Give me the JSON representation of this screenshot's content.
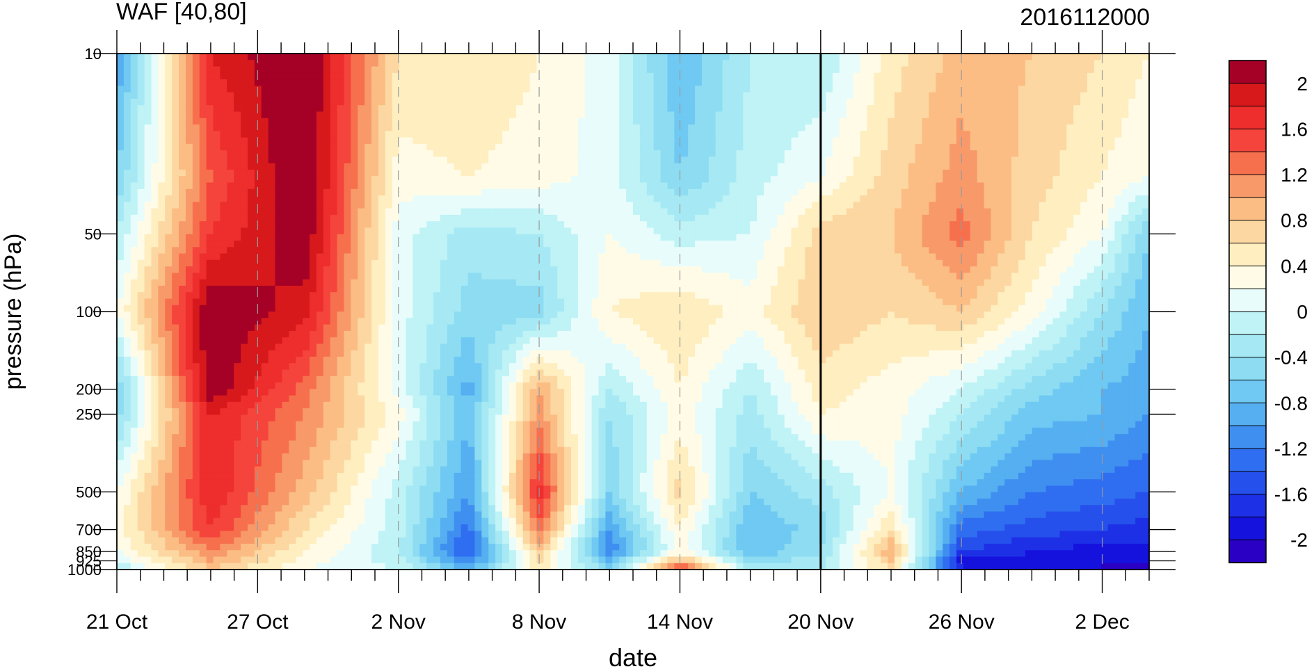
{
  "chart_data": {
    "type": "heatmap",
    "title_left": "WAF [40,80]",
    "title_right": "2016112000",
    "xlabel": "date",
    "ylabel": "pressure (hPa)",
    "x_ticks": [
      "21 Oct",
      "27 Oct",
      "2 Nov",
      "8 Nov",
      "14 Nov",
      "20 Nov",
      "26 Nov",
      "2 Dec"
    ],
    "x_range": [
      "21 Oct",
      "4 Dec"
    ],
    "y_ticks": [
      "10",
      "50",
      "100",
      "200",
      "250",
      "500",
      "700",
      "850",
      "925",
      "1000"
    ],
    "y_range": [
      1000,
      10
    ],
    "y_scale": "log",
    "marker_date": "20 Nov",
    "colorbar": {
      "labels": [
        "2",
        "1.6",
        "1.2",
        "0.8",
        "0.4",
        "0",
        "-0.4",
        "-0.8",
        "-1.2",
        "-1.6",
        "-2"
      ],
      "levels": [
        2.2,
        2.0,
        1.8,
        1.6,
        1.4,
        1.2,
        1.0,
        0.8,
        0.6,
        0.4,
        0.2,
        0.0,
        -0.2,
        -0.4,
        -0.6,
        -0.8,
        -1.0,
        -1.2,
        -1.4,
        -1.6,
        -1.8,
        -2.0,
        -2.2
      ],
      "colors": [
        "#a50026",
        "#d7191c",
        "#ee2d2d",
        "#f4443c",
        "#f7704d",
        "#f8996a",
        "#fbbd84",
        "#fcd7a1",
        "#feeec0",
        "#fffbe6",
        "#e8fcfc",
        "#bff3f6",
        "#a6e9f4",
        "#8ddcf2",
        "#6fc9f2",
        "#55aff0",
        "#3f8ff0",
        "#2f6ef0",
        "#2650ec",
        "#1d30e6",
        "#1612de",
        "#2a00c4"
      ]
    },
    "x_dates": [
      "21 Oct",
      "25 Oct",
      "29 Oct",
      "2 Nov",
      "5 Nov",
      "8 Nov",
      "11 Nov",
      "14 Nov",
      "17 Nov",
      "20 Nov",
      "23 Nov",
      "26 Nov",
      "29 Nov",
      "2 Dec",
      "4 Dec"
    ],
    "y_levels": [
      10,
      30,
      50,
      100,
      200,
      250,
      500,
      700,
      850,
      925,
      1000
    ],
    "z": [
      [
        -1.0,
        1.8,
        2.3,
        0.6,
        0.6,
        0.4,
        0.1,
        -0.8,
        -0.2,
        -0.2,
        0.5,
        0.9,
        0.8,
        0.6,
        0.4
      ],
      [
        -0.6,
        1.4,
        2.3,
        0.3,
        0.4,
        0.3,
        0.1,
        -0.6,
        -0.1,
        0.2,
        0.7,
        1.1,
        0.7,
        0.4,
        0.2
      ],
      [
        -0.2,
        1.6,
        2.2,
        0.1,
        -0.3,
        -0.2,
        0.2,
        -0.1,
        0.0,
        0.7,
        0.8,
        1.3,
        0.6,
        0.2,
        -0.6
      ],
      [
        0.2,
        2.2,
        1.9,
        0.1,
        -0.5,
        -0.5,
        0.4,
        0.6,
        0.3,
        0.8,
        0.6,
        0.8,
        0.3,
        -0.4,
        -0.8
      ],
      [
        -0.6,
        2.2,
        1.3,
        0.1,
        -0.9,
        1.0,
        -0.2,
        0.4,
        -0.2,
        0.5,
        0.3,
        0.0,
        -0.5,
        -0.8,
        -0.9
      ],
      [
        -0.5,
        1.8,
        1.2,
        0.3,
        -0.8,
        1.1,
        -0.4,
        0.3,
        -0.3,
        0.4,
        0.3,
        -0.2,
        -0.7,
        -0.8,
        -1.0
      ],
      [
        0.2,
        1.8,
        0.9,
        -0.1,
        -1.0,
        1.7,
        -0.6,
        0.7,
        -0.6,
        -0.3,
        0.2,
        -0.8,
        -1.2,
        -1.3,
        -1.4
      ],
      [
        0.3,
        1.6,
        0.6,
        -0.1,
        -1.3,
        1.3,
        -1.0,
        0.4,
        -0.8,
        -0.5,
        0.6,
        -1.3,
        -1.5,
        -1.6,
        -1.7
      ],
      [
        0.2,
        1.2,
        0.4,
        -0.2,
        -1.5,
        0.8,
        -1.2,
        0.3,
        -0.8,
        -0.4,
        1.0,
        -1.6,
        -1.8,
        -1.9,
        -1.9
      ],
      [
        0.0,
        1.0,
        0.3,
        -0.1,
        -1.2,
        0.6,
        -0.8,
        0.9,
        -0.5,
        -0.3,
        0.8,
        -1.9,
        -1.9,
        -2.0,
        -2.0
      ],
      [
        -0.2,
        0.8,
        0.2,
        0.0,
        -0.8,
        0.5,
        -0.5,
        1.6,
        -0.3,
        -0.2,
        0.6,
        -1.8,
        -1.9,
        -2.0,
        -2.0
      ]
    ]
  }
}
